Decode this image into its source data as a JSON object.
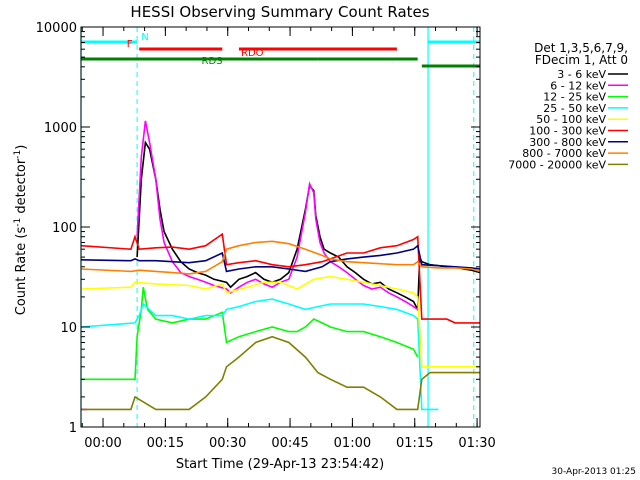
{
  "chart_data": {
    "type": "line",
    "title": "HESSI Observing Summary Count Rates",
    "xlabel": "Start Time (29-Apr-13 23:54:42)",
    "ylabel": "Count Rate (s⁻¹ detector⁻¹)",
    "ylabel_base": "Count Rate (s",
    "ylabel_exp1": "-1",
    "ylabel_mid": " detector",
    "ylabel_exp2": "-1",
    "ylabel_end": ")",
    "x_unit": "minutes after 23:54:42",
    "xlim": [
      0,
      96
    ],
    "ylim": [
      1,
      10000
    ],
    "yscale": "log",
    "x_ticks": [
      {
        "x": 5.3,
        "label": "00:00"
      },
      {
        "x": 20.3,
        "label": "00:15"
      },
      {
        "x": 35.3,
        "label": "00:30"
      },
      {
        "x": 50.3,
        "label": "00:45"
      },
      {
        "x": 65.3,
        "label": "01:00"
      },
      {
        "x": 80.3,
        "label": "01:15"
      },
      {
        "x": 95.3,
        "label": "01:30"
      }
    ],
    "y_ticks": [
      {
        "y": 1,
        "label": "1"
      },
      {
        "y": 10,
        "label": "10"
      },
      {
        "y": 100,
        "label": "100"
      },
      {
        "y": 1000,
        "label": "1000"
      },
      {
        "y": 10000,
        "label": "10000"
      }
    ],
    "legend_header": [
      "Det 1,3,5,6,7,9,",
      "FDecim 1, Att 0"
    ],
    "series": [
      {
        "name": "3 - 6 keV",
        "color": "#000000",
        "x": [
          0,
          13,
          13.5,
          14.5,
          15.5,
          16.5,
          18,
          19,
          20,
          22,
          24,
          26,
          28,
          30,
          32,
          35,
          36,
          38,
          40,
          42,
          44,
          46,
          48,
          50,
          52,
          54,
          55,
          56,
          56.5,
          57.5,
          58.5,
          60,
          62,
          64,
          66,
          68,
          70,
          72,
          74,
          76,
          78,
          80,
          81,
          81.5,
          82,
          84,
          86,
          88,
          90,
          92,
          94,
          96
        ],
        "y": [
          null,
          null,
          50,
          300,
          700,
          600,
          300,
          150,
          90,
          60,
          45,
          38,
          35,
          33,
          30,
          28,
          25,
          30,
          32,
          35,
          30,
          28,
          30,
          35,
          60,
          150,
          260,
          230,
          130,
          80,
          60,
          55,
          50,
          40,
          35,
          30,
          27,
          28,
          24,
          22,
          20,
          18,
          15,
          50,
          45,
          42,
          41,
          40,
          40,
          38,
          37,
          35
        ]
      },
      {
        "name": "6 - 12 keV",
        "color": "#ff00ff",
        "x": [
          0,
          1.5,
          2,
          13,
          13.5,
          14.5,
          15.5,
          16.5,
          18,
          19,
          20,
          22,
          24,
          26,
          28,
          30,
          32,
          35,
          36,
          38,
          40,
          42,
          44,
          46,
          48,
          50,
          52,
          54,
          55,
          56,
          56.5,
          57.5,
          58.5,
          60,
          62,
          64,
          66,
          68,
          70,
          72,
          74,
          76,
          78,
          80,
          81,
          81.5
        ],
        "y": [
          1.5,
          1.5,
          null,
          null,
          80,
          500,
          1150,
          700,
          300,
          120,
          70,
          45,
          35,
          32,
          30,
          28,
          26,
          24,
          22,
          25,
          28,
          30,
          27,
          25,
          28,
          30,
          50,
          140,
          270,
          220,
          120,
          70,
          55,
          45,
          40,
          35,
          30,
          26,
          24,
          25,
          22,
          20,
          18,
          16,
          15,
          null
        ]
      },
      {
        "name": "12 - 25 keV",
        "color": "#00ff00",
        "x": [
          0,
          13,
          13.5,
          14.5,
          15,
          16,
          18,
          22,
          26,
          30,
          34,
          35,
          38,
          42,
          46,
          50,
          52,
          54,
          56,
          58,
          60,
          64,
          68,
          72,
          76,
          80,
          81,
          81.5,
          82
        ],
        "y": [
          3,
          3,
          8,
          15,
          25,
          15,
          12,
          11,
          12,
          12,
          14,
          7,
          8,
          9,
          10,
          9,
          9,
          10,
          12,
          11,
          10,
          9,
          9,
          8,
          7,
          6,
          5,
          null,
          null
        ]
      },
      {
        "name": "25 - 50 keV",
        "color": "#00ffff",
        "x": [
          0,
          13,
          14,
          15,
          18,
          22,
          26,
          30,
          34,
          35,
          38,
          42,
          46,
          50,
          54,
          57,
          60,
          64,
          68,
          72,
          76,
          80,
          81,
          82,
          84,
          86,
          86.5,
          96
        ],
        "y": [
          10,
          11,
          13,
          17,
          13,
          13,
          12,
          13,
          13,
          15,
          16,
          18,
          19,
          17,
          15,
          16,
          17,
          17,
          17,
          16,
          15,
          13,
          12,
          1.5,
          1.5,
          1.5,
          null,
          null
        ]
      },
      {
        "name": "50 - 100 keV",
        "color": "#ffff00",
        "x": [
          0,
          12,
          13,
          18,
          26,
          30,
          34,
          35,
          40,
          44,
          48,
          50,
          52,
          56,
          60,
          64,
          68,
          72,
          76,
          80,
          81,
          82,
          84,
          86,
          88,
          90,
          92,
          94,
          96
        ],
        "y": [
          24,
          25,
          28,
          27,
          26,
          24,
          27,
          22,
          25,
          28,
          28,
          26,
          24,
          30,
          32,
          30,
          28,
          26,
          24,
          22,
          20,
          4,
          4,
          4,
          4,
          4,
          4,
          4,
          4
        ]
      },
      {
        "name": "100 - 300 keV",
        "color": "#ff0000",
        "x": [
          0,
          12,
          13,
          14,
          18,
          22,
          26,
          30,
          34,
          35,
          38,
          42,
          46,
          50,
          54,
          58,
          60,
          64,
          68,
          72,
          76,
          80,
          81,
          82,
          84,
          86,
          88,
          90,
          92,
          94,
          96
        ],
        "y": [
          65,
          60,
          80,
          60,
          62,
          63,
          60,
          65,
          85,
          42,
          44,
          46,
          42,
          40,
          42,
          45,
          48,
          55,
          55,
          62,
          65,
          75,
          80,
          12,
          12,
          12,
          12,
          11,
          11,
          11,
          11
        ]
      },
      {
        "name": "300 - 800 keV",
        "color": "#000080",
        "x": [
          0,
          12,
          13,
          14,
          18,
          22,
          26,
          30,
          34,
          35,
          38,
          42,
          46,
          50,
          54,
          58,
          60,
          64,
          68,
          72,
          76,
          80,
          81,
          82,
          86,
          90,
          94,
          96
        ],
        "y": [
          47,
          46,
          48,
          46,
          46,
          45,
          44,
          46,
          55,
          36,
          38,
          40,
          40,
          38,
          36,
          40,
          45,
          48,
          50,
          52,
          55,
          60,
          65,
          42,
          41,
          40,
          39,
          38
        ]
      },
      {
        "name": "800 - 7000 keV",
        "color": "#ff8000",
        "x": [
          0,
          12,
          14,
          18,
          22,
          26,
          30,
          34,
          35,
          38,
          42,
          46,
          50,
          54,
          58,
          60,
          64,
          68,
          72,
          76,
          80,
          81,
          82,
          86,
          90,
          94,
          96
        ],
        "y": [
          38,
          36,
          37,
          36,
          35,
          34,
          36,
          45,
          60,
          65,
          70,
          72,
          68,
          60,
          52,
          48,
          45,
          44,
          43,
          42,
          42,
          45,
          40,
          39,
          39,
          38,
          36
        ]
      },
      {
        "name": "7000 - 20000 keV",
        "color": "#808000",
        "x": [
          0,
          12,
          13,
          18,
          22,
          26,
          30,
          34,
          35,
          38,
          42,
          46,
          50,
          54,
          57,
          60,
          64,
          68,
          72,
          76,
          80,
          81,
          82,
          84,
          86,
          90,
          94,
          96
        ],
        "y": [
          1.5,
          1.5,
          2,
          1.5,
          1.5,
          1.5,
          2,
          3,
          4,
          5,
          7,
          8,
          7,
          5,
          3.5,
          3,
          2.5,
          2.5,
          2,
          1.5,
          1.5,
          1.5,
          3,
          3.5,
          3.5,
          3.5,
          3.5,
          3.5
        ]
      }
    ],
    "flags": [
      {
        "label": "N",
        "color": "#00ffff",
        "segments": [
          [
            0,
            13.5
          ],
          [
            83.5,
            96
          ]
        ]
      },
      {
        "label": "F",
        "color": "#ff0000",
        "segments": [
          [
            14,
            34
          ]
        ]
      },
      {
        "label": "RDO",
        "color": "#ff0000",
        "segments": [
          [
            38,
            76
          ]
        ]
      },
      {
        "label": "RDS",
        "color": "#008000",
        "segments": [
          [
            0,
            35
          ],
          [
            35,
            57
          ],
          [
            57,
            81
          ]
        ]
      },
      {
        "label": "",
        "color": "#008000",
        "segments": [
          [
            82,
            96
          ]
        ]
      }
    ],
    "vlines_solid": [
      0,
      83.5
    ],
    "vlines_dashed": [
      13.5,
      94.5
    ],
    "footer_date": "30-Apr-2013 01:25"
  }
}
